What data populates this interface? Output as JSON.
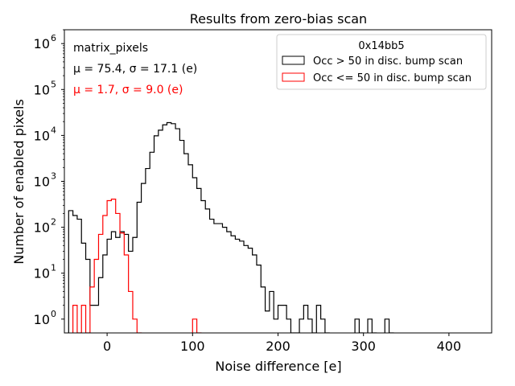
{
  "chart_data": {
    "type": "step-histogram",
    "title": "Results from zero-bias scan",
    "xlabel": "Noise difference [e]",
    "ylabel": "Number of enabled pixels",
    "xlim": [
      -50,
      450
    ],
    "ylim": [
      0.5,
      2000000
    ],
    "yscale": "log",
    "bin_width": 5,
    "xticks": [
      0,
      100,
      200,
      300,
      400
    ],
    "xtick_labels": [
      "0",
      "100",
      "200",
      "300",
      "400"
    ],
    "yticks": [
      1,
      10,
      100,
      1000,
      10000,
      100000,
      1000000
    ],
    "ytick_labels": [
      {
        "base": "10",
        "exp": "0"
      },
      {
        "base": "10",
        "exp": "1"
      },
      {
        "base": "10",
        "exp": "2"
      },
      {
        "base": "10",
        "exp": "3"
      },
      {
        "base": "10",
        "exp": "4"
      },
      {
        "base": "10",
        "exp": "5"
      },
      {
        "base": "10",
        "exp": "6"
      }
    ],
    "info": {
      "name": "matrix_pixels",
      "stats_black": "μ = 75.4, σ = 17.1 (e)",
      "stats_red": "μ = 1.7, σ = 9.0 (e)"
    },
    "legend": {
      "title": "0x14bb5",
      "position": "top-right",
      "entries": [
        "Occ > 50 in disc. bump scan",
        "Occ <= 50 in disc. bump scan"
      ]
    },
    "series": [
      {
        "name": "Occ > 50 in disc. bump scan",
        "color": "#000000",
        "bins": [
          [
            -45,
            230
          ],
          [
            -40,
            180
          ],
          [
            -35,
            150
          ],
          [
            -30,
            45
          ],
          [
            -25,
            20
          ],
          [
            -20,
            2
          ],
          [
            -15,
            2
          ],
          [
            -10,
            8
          ],
          [
            -5,
            25
          ],
          [
            0,
            55
          ],
          [
            5,
            80
          ],
          [
            10,
            60
          ],
          [
            15,
            80
          ],
          [
            20,
            70
          ],
          [
            25,
            30
          ],
          [
            30,
            60
          ],
          [
            35,
            350
          ],
          [
            40,
            900
          ],
          [
            45,
            1900
          ],
          [
            50,
            4300
          ],
          [
            55,
            9800
          ],
          [
            60,
            13000
          ],
          [
            65,
            17000
          ],
          [
            70,
            19000
          ],
          [
            75,
            18000
          ],
          [
            80,
            14000
          ],
          [
            85,
            7800
          ],
          [
            90,
            4000
          ],
          [
            95,
            2300
          ],
          [
            100,
            1200
          ],
          [
            105,
            700
          ],
          [
            110,
            380
          ],
          [
            115,
            250
          ],
          [
            120,
            150
          ],
          [
            125,
            120
          ],
          [
            130,
            120
          ],
          [
            135,
            100
          ],
          [
            140,
            80
          ],
          [
            145,
            65
          ],
          [
            150,
            55
          ],
          [
            155,
            50
          ],
          [
            160,
            40
          ],
          [
            165,
            35
          ],
          [
            170,
            25
          ],
          [
            175,
            15
          ],
          [
            180,
            5
          ],
          [
            185,
            1.5
          ],
          [
            190,
            4
          ],
          [
            195,
            1
          ],
          [
            200,
            2
          ],
          [
            205,
            2
          ],
          [
            210,
            1
          ],
          [
            215,
            0.5
          ],
          [
            220,
            0.5
          ],
          [
            225,
            1
          ],
          [
            230,
            2
          ],
          [
            235,
            1
          ],
          [
            240,
            0.5
          ],
          [
            245,
            2
          ],
          [
            250,
            1
          ],
          [
            255,
            0.5
          ],
          [
            290,
            1
          ],
          [
            295,
            0.5
          ],
          [
            305,
            1
          ],
          [
            310,
            0.5
          ],
          [
            325,
            1
          ],
          [
            330,
            0.5
          ]
        ]
      },
      {
        "name": "Occ <= 50 in disc. bump scan",
        "color": "#ff0000",
        "bins": [
          [
            -40,
            2
          ],
          [
            -35,
            0.5
          ],
          [
            -30,
            2
          ],
          [
            -25,
            0.5
          ],
          [
            -20,
            5
          ],
          [
            -15,
            20
          ],
          [
            -10,
            70
          ],
          [
            -5,
            180
          ],
          [
            0,
            380
          ],
          [
            5,
            410
          ],
          [
            10,
            200
          ],
          [
            15,
            75
          ],
          [
            20,
            25
          ],
          [
            25,
            4
          ],
          [
            30,
            1
          ],
          [
            35,
            0.5
          ],
          [
            100,
            1
          ],
          [
            105,
            0.5
          ]
        ]
      }
    ]
  }
}
